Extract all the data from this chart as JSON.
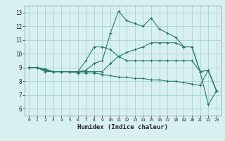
{
  "xlabel": "Humidex (Indice chaleur)",
  "background_color": "#d8f0f0",
  "grid_color": "#a8d4d4",
  "line_color": "#2a7a6a",
  "xlim": [
    -0.5,
    23.5
  ],
  "ylim": [
    5.5,
    13.5
  ],
  "xticks": [
    0,
    1,
    2,
    3,
    4,
    5,
    6,
    7,
    8,
    9,
    10,
    11,
    12,
    13,
    14,
    15,
    16,
    17,
    18,
    19,
    20,
    21,
    22,
    23
  ],
  "yticks": [
    6,
    7,
    8,
    9,
    10,
    11,
    12,
    13
  ],
  "series": [
    {
      "x": [
        0,
        1,
        2,
        3,
        4,
        5,
        6,
        7,
        8,
        9,
        10,
        11,
        12,
        13,
        14,
        15,
        16,
        17,
        18,
        19,
        20,
        21,
        22,
        23
      ],
      "y": [
        9.0,
        9.0,
        8.9,
        8.7,
        8.7,
        8.7,
        8.7,
        8.8,
        9.3,
        9.5,
        11.5,
        13.1,
        12.4,
        12.2,
        12.0,
        12.6,
        11.8,
        11.5,
        11.2,
        10.5,
        10.5,
        8.7,
        8.8,
        7.3
      ]
    },
    {
      "x": [
        0,
        1,
        2,
        3,
        4,
        5,
        6,
        7,
        8,
        9,
        10,
        11,
        12,
        13,
        14,
        15,
        16,
        17,
        18,
        19,
        20,
        21,
        22,
        23
      ],
      "y": [
        9.0,
        9.0,
        8.7,
        8.7,
        8.7,
        8.7,
        8.6,
        8.6,
        8.6,
        8.5,
        8.4,
        8.3,
        8.3,
        8.2,
        8.2,
        8.1,
        8.1,
        8.0,
        8.0,
        7.9,
        7.8,
        7.7,
        8.8,
        7.3
      ]
    },
    {
      "x": [
        0,
        1,
        2,
        3,
        4,
        5,
        6,
        7,
        8,
        9,
        10,
        11,
        12,
        13,
        14,
        15,
        16,
        17,
        18,
        19,
        20,
        21,
        22,
        23
      ],
      "y": [
        9.0,
        9.0,
        8.8,
        8.7,
        8.7,
        8.7,
        8.7,
        9.5,
        10.5,
        10.5,
        10.3,
        9.8,
        9.5,
        9.5,
        9.5,
        9.5,
        9.5,
        9.5,
        9.5,
        9.5,
        9.5,
        8.7,
        8.8,
        7.3
      ]
    },
    {
      "x": [
        0,
        1,
        2,
        3,
        4,
        5,
        6,
        7,
        8,
        9,
        10,
        11,
        12,
        13,
        14,
        15,
        16,
        17,
        18,
        19,
        20,
        21,
        22,
        23
      ],
      "y": [
        9.0,
        9.0,
        8.8,
        8.7,
        8.7,
        8.7,
        8.7,
        8.7,
        8.7,
        8.7,
        9.3,
        9.8,
        10.1,
        10.3,
        10.5,
        10.8,
        10.8,
        10.8,
        10.8,
        10.5,
        10.5,
        8.7,
        6.3,
        7.3
      ]
    }
  ]
}
